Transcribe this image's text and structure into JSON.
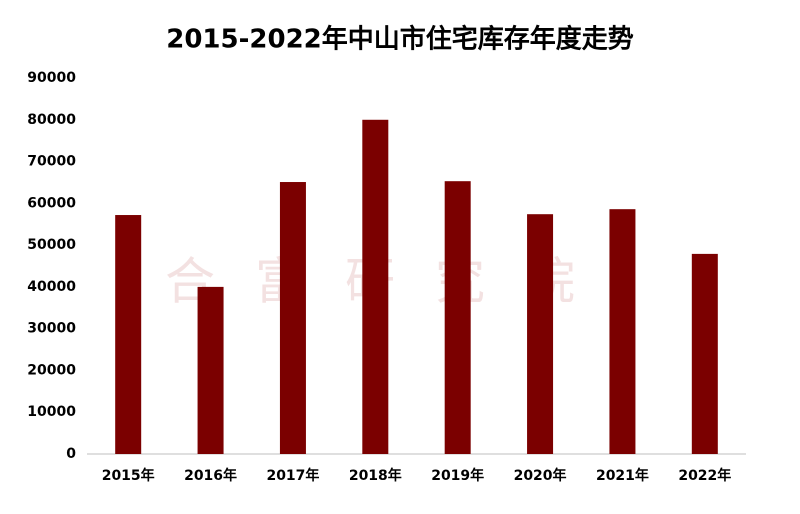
{
  "chart_data": {
    "type": "bar",
    "title": "2015-2022年中山市住宅库存年度走势",
    "watermark": "合富研究院",
    "categories": [
      "2015年",
      "2016年",
      "2017年",
      "2018年",
      "2019年",
      "2020年",
      "2021年",
      "2022年"
    ],
    "values": [
      57200,
      40000,
      65100,
      80000,
      65300,
      57400,
      58600,
      47900
    ],
    "color": "#7b0000",
    "ylim": [
      0,
      90000
    ],
    "yticks": [
      0,
      10000,
      20000,
      30000,
      40000,
      50000,
      60000,
      70000,
      80000,
      90000
    ],
    "grid": false
  }
}
